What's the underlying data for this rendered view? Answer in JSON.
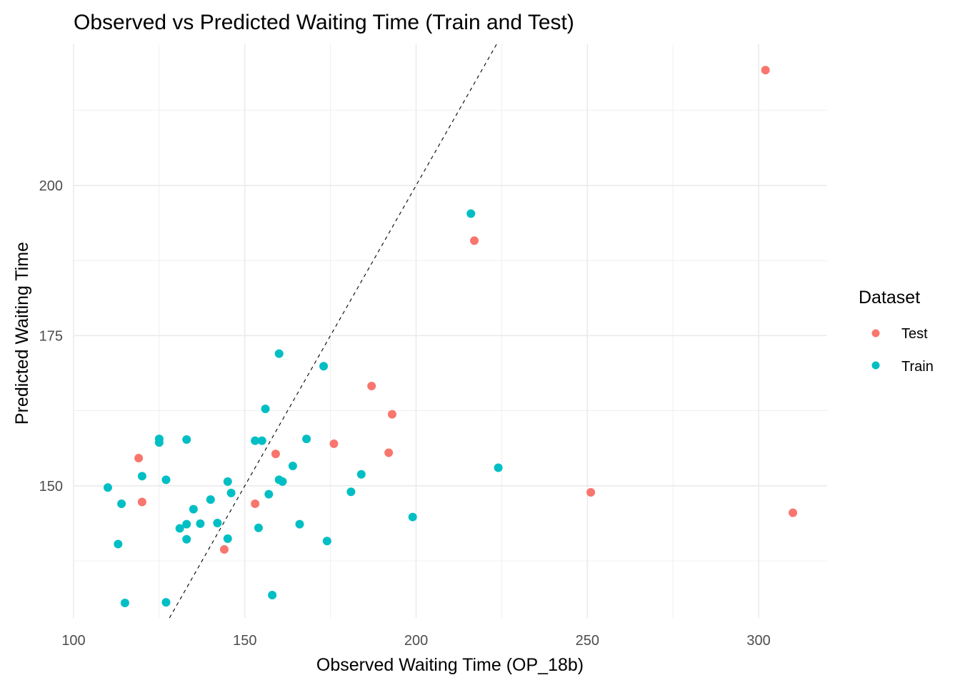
{
  "chart_data": {
    "type": "scatter",
    "title": "Observed vs Predicted Waiting Time (Train and Test)",
    "xlabel": "Observed Waiting Time (OP_18b)",
    "ylabel": "Predicted Waiting Time",
    "xlim": [
      100,
      320
    ],
    "ylim": [
      128,
      223.5
    ],
    "x_ticks": [
      100,
      150,
      200,
      250,
      300
    ],
    "x_tick_labels": [
      "100",
      "150",
      "200",
      "250",
      "300"
    ],
    "y_ticks": [
      150,
      175,
      200
    ],
    "y_tick_labels": [
      "150",
      "175",
      "200"
    ],
    "grid": true,
    "reference_line": {
      "type": "identity",
      "slope": 1,
      "intercept": 0,
      "style": "dashed",
      "color": "#000000"
    },
    "legend": {
      "title": "Dataset",
      "position": "right",
      "entries": [
        {
          "label": "Test",
          "color": "#F8766D"
        },
        {
          "label": "Train",
          "color": "#00BFC4"
        }
      ]
    },
    "series": [
      {
        "name": "Test",
        "color": "#F8766D",
        "points": [
          {
            "x": 119,
            "y": 154.6
          },
          {
            "x": 120,
            "y": 147.3
          },
          {
            "x": 144,
            "y": 139.4
          },
          {
            "x": 153,
            "y": 147.0
          },
          {
            "x": 159,
            "y": 155.3
          },
          {
            "x": 176,
            "y": 157.0
          },
          {
            "x": 187,
            "y": 166.6
          },
          {
            "x": 192,
            "y": 155.5
          },
          {
            "x": 193,
            "y": 161.9
          },
          {
            "x": 217,
            "y": 190.8
          },
          {
            "x": 251,
            "y": 148.9
          },
          {
            "x": 302,
            "y": 219.2
          },
          {
            "x": 310,
            "y": 145.5
          }
        ]
      },
      {
        "name": "Train",
        "color": "#00BFC4",
        "points": [
          {
            "x": 110,
            "y": 149.7
          },
          {
            "x": 113,
            "y": 140.3
          },
          {
            "x": 114,
            "y": 147.0
          },
          {
            "x": 115,
            "y": 130.5
          },
          {
            "x": 120,
            "y": 151.6
          },
          {
            "x": 125,
            "y": 157.8
          },
          {
            "x": 125,
            "y": 157.2
          },
          {
            "x": 127,
            "y": 151.0
          },
          {
            "x": 127,
            "y": 130.6
          },
          {
            "x": 131,
            "y": 142.9
          },
          {
            "x": 133,
            "y": 157.7
          },
          {
            "x": 133,
            "y": 143.6
          },
          {
            "x": 133,
            "y": 141.1
          },
          {
            "x": 135,
            "y": 146.1
          },
          {
            "x": 137,
            "y": 143.7
          },
          {
            "x": 140,
            "y": 147.7
          },
          {
            "x": 142,
            "y": 143.8
          },
          {
            "x": 145,
            "y": 150.7
          },
          {
            "x": 145,
            "y": 141.2
          },
          {
            "x": 146,
            "y": 148.8
          },
          {
            "x": 153,
            "y": 157.5
          },
          {
            "x": 154,
            "y": 143.0
          },
          {
            "x": 155,
            "y": 157.5
          },
          {
            "x": 156,
            "y": 162.8
          },
          {
            "x": 157,
            "y": 148.6
          },
          {
            "x": 158,
            "y": 131.8
          },
          {
            "x": 160,
            "y": 172.0
          },
          {
            "x": 160,
            "y": 151.0
          },
          {
            "x": 161,
            "y": 150.7
          },
          {
            "x": 164,
            "y": 153.3
          },
          {
            "x": 166,
            "y": 143.6
          },
          {
            "x": 168,
            "y": 157.8
          },
          {
            "x": 173,
            "y": 169.9
          },
          {
            "x": 174,
            "y": 140.8
          },
          {
            "x": 181,
            "y": 149.0
          },
          {
            "x": 184,
            "y": 151.9
          },
          {
            "x": 199,
            "y": 144.8
          },
          {
            "x": 216,
            "y": 195.3
          },
          {
            "x": 224,
            "y": 153.0
          }
        ]
      }
    ]
  }
}
